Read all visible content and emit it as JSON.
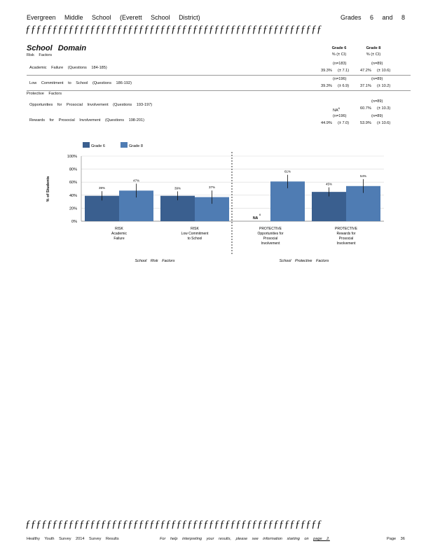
{
  "header": {
    "left": "Evergreen Middle School (Everett School District)",
    "right": "Grades 6 and 8"
  },
  "rule_text": "ƒƒƒƒƒƒƒƒƒƒƒƒƒƒƒƒƒƒƒƒƒƒƒƒƒƒƒƒƒƒƒƒƒƒƒƒƒƒƒƒƒƒƒƒƒƒƒƒƒƒƒƒƒƒƒƒƒƒƒƒƒƒƒƒƒ",
  "section": {
    "title": "School Domain",
    "risk_heading": "Risk Factors",
    "protective_heading": "Protective Factors"
  },
  "columns": {
    "g6_title": "Grade 6",
    "g6_sub": "% (± CI)",
    "g8_title": "Grade 8",
    "g8_sub": "% (± CI)"
  },
  "rows": [
    {
      "label": "Academic Failure (Questions 184-185)",
      "n6": "(n=183)",
      "v6": "39.3%",
      "ci6": "(± 7.1)",
      "n8": "(n=89)",
      "v8": "47.2%",
      "ci8": "(± 10.6)"
    },
    {
      "label": "Low Commitment to School (Questions 186-192)",
      "n6": "(n=196)",
      "v6": "39.3%",
      "ci6": "(± 6.9)",
      "n8": "(n=89)",
      "v8": "37.1%",
      "ci8": "(± 10.2)"
    },
    {
      "label": "Opportunities for Prosocial Involvement (Questions 193-197)",
      "n6": "",
      "v6": "NA",
      "sup6": "6",
      "ci6": "",
      "n8": "(n=89)",
      "v8": "60.7%",
      "ci8": "(± 10.3)"
    },
    {
      "label": "Rewards for Prosocial Involvement (Questions 198-201)",
      "n6": "(n=196)",
      "v6": "44.9%",
      "ci6": "(± 7.0)",
      "n8": "(n=89)",
      "v8": "53.9%",
      "ci8": "(± 10.6)"
    }
  ],
  "chart_data": {
    "type": "bar",
    "ylabel": "% of Students",
    "yticks": [
      "0%",
      "20%",
      "40%",
      "60%",
      "80%",
      "100%"
    ],
    "ylim": [
      0,
      100
    ],
    "categories": [
      [
        "RISK",
        "Academic",
        "Failure"
      ],
      [
        "RISK",
        "Low Commitment",
        "to School"
      ],
      [
        "PROTECTIVE",
        "Opportunities for",
        "Prosocial",
        "Involvement"
      ],
      [
        "PROTECTIVE",
        "Rewards for",
        "Prosocial",
        "Involvement"
      ]
    ],
    "series": [
      {
        "name": "Grade 6",
        "color": "#3a5f8f",
        "values": [
          39,
          39,
          null,
          45
        ],
        "labels": [
          "39%",
          "39%",
          "NA",
          "45%"
        ],
        "ci": [
          7.1,
          6.9,
          null,
          7.0
        ]
      },
      {
        "name": "Grade 8",
        "color": "#4f7cb3",
        "values": [
          47,
          37,
          61,
          54
        ],
        "labels": [
          "47%",
          "37%",
          "61%",
          "54%"
        ],
        "ci": [
          10.6,
          10.2,
          10.3,
          10.6
        ]
      }
    ],
    "na_superscript": "6",
    "group_labels": [
      "School Risk Factors",
      "School Protective Factors"
    ]
  },
  "footer": {
    "left": "Healthy Youth Survey 2014 Survey Results",
    "help": "For help interpreting your results, please see information starting on",
    "help_link": "page 2.",
    "page": "Page 36"
  }
}
